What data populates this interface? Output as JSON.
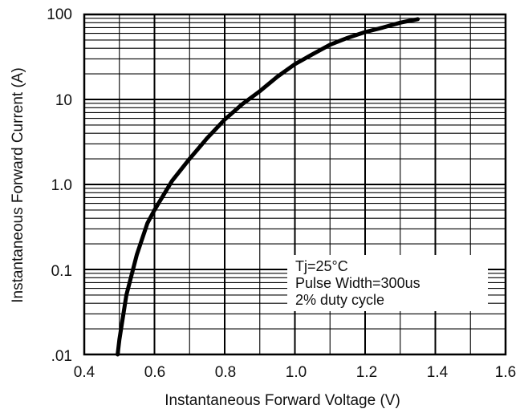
{
  "chart_data": {
    "type": "line",
    "title": "",
    "xlabel": "Instantaneous Forward Voltage (V)",
    "ylabel": "Instantaneous Forward Current (A)",
    "xlim": [
      0.4,
      1.6
    ],
    "ylim": [
      0.01,
      100
    ],
    "y_scale": "log",
    "grid": true,
    "x_ticks": [
      0.4,
      0.6,
      0.8,
      1.0,
      1.2,
      1.4,
      1.6
    ],
    "x_tick_labels": [
      "0.4",
      "0.6",
      "0.8",
      "1.0",
      "1.2",
      "1.4",
      "1.6"
    ],
    "y_ticks": [
      0.01,
      0.1,
      1,
      10,
      100
    ],
    "y_tick_labels": [
      ".01",
      "0.1",
      "1.0",
      "10",
      "100"
    ],
    "annotations": [
      "Tj=25°C",
      "Pulse Width=300us",
      "2% duty cycle"
    ],
    "line_color": "#000000",
    "series": [
      {
        "x": [
          0.495,
          0.5,
          0.52,
          0.55,
          0.58,
          0.6,
          0.65,
          0.7,
          0.75,
          0.8,
          0.85,
          0.9,
          0.95,
          1.0,
          1.05,
          1.1,
          1.15,
          1.2,
          1.25,
          1.3,
          1.35
        ],
        "y": [
          0.01,
          0.015,
          0.05,
          0.15,
          0.35,
          0.5,
          1.1,
          2.0,
          3.5,
          5.8,
          8.8,
          12.5,
          18.5,
          26,
          34,
          44,
          53,
          62,
          70,
          80,
          88
        ]
      }
    ]
  }
}
